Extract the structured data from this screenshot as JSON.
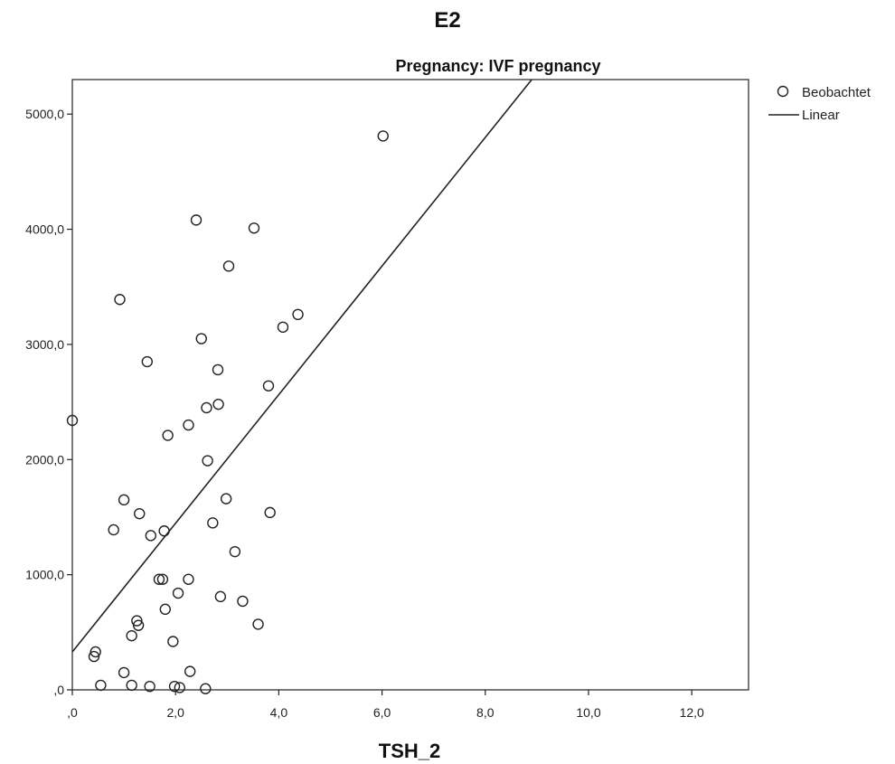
{
  "chart_data": {
    "type": "scatter",
    "title": "E2",
    "subtitle": "Pregnancy: IVF pregnancy",
    "xlabel": "TSH_2",
    "ylabel": "",
    "xlim": [
      0,
      13.1
    ],
    "ylim": [
      0,
      5300
    ],
    "x_ticks": [
      0,
      2,
      4,
      6,
      8,
      10,
      12
    ],
    "x_tick_labels": [
      ",0",
      "2,0",
      "4,0",
      "6,0",
      "8,0",
      "10,0",
      "12,0"
    ],
    "y_ticks": [
      0,
      1000,
      2000,
      3000,
      4000,
      5000
    ],
    "y_tick_labels": [
      ",0",
      "1000,0",
      "2000,0",
      "3000,0",
      "4000,0",
      "5000,0"
    ],
    "grid": false,
    "legend_position": "top-right",
    "legend": [
      {
        "marker": "circle",
        "label": "Beobachtet"
      },
      {
        "marker": "line",
        "label": "Linear"
      }
    ],
    "series": [
      {
        "name": "Beobachtet",
        "marker": "open-circle",
        "points": [
          [
            0.0,
            2340
          ],
          [
            0.45,
            330
          ],
          [
            0.42,
            290
          ],
          [
            0.55,
            40
          ],
          [
            0.8,
            1390
          ],
          [
            0.92,
            3390
          ],
          [
            1.0,
            1650
          ],
          [
            1.0,
            150
          ],
          [
            1.15,
            470
          ],
          [
            1.15,
            40
          ],
          [
            1.25,
            600
          ],
          [
            1.28,
            560
          ],
          [
            1.3,
            1530
          ],
          [
            1.45,
            2850
          ],
          [
            1.52,
            1340
          ],
          [
            1.5,
            30
          ],
          [
            1.68,
            960
          ],
          [
            1.75,
            960
          ],
          [
            1.78,
            1380
          ],
          [
            1.8,
            700
          ],
          [
            1.85,
            2210
          ],
          [
            1.95,
            420
          ],
          [
            1.98,
            30
          ],
          [
            2.05,
            840
          ],
          [
            2.08,
            20
          ],
          [
            2.25,
            960
          ],
          [
            2.25,
            2300
          ],
          [
            2.28,
            160
          ],
          [
            2.4,
            4080
          ],
          [
            2.5,
            3050
          ],
          [
            2.58,
            10
          ],
          [
            2.6,
            2450
          ],
          [
            2.62,
            1990
          ],
          [
            2.72,
            1450
          ],
          [
            2.82,
            2780
          ],
          [
            2.83,
            2480
          ],
          [
            2.87,
            810
          ],
          [
            2.98,
            1660
          ],
          [
            3.03,
            3680
          ],
          [
            3.15,
            1200
          ],
          [
            3.3,
            770
          ],
          [
            3.52,
            4010
          ],
          [
            3.6,
            570
          ],
          [
            3.8,
            2640
          ],
          [
            3.83,
            1540
          ],
          [
            4.08,
            3150
          ],
          [
            4.37,
            3260
          ],
          [
            6.02,
            4810
          ]
        ]
      },
      {
        "name": "Linear",
        "type": "line",
        "x": [
          0.0,
          8.9
        ],
        "y": [
          330,
          5300
        ]
      }
    ]
  }
}
